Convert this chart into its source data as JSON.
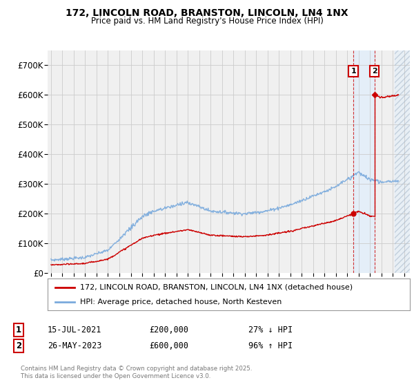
{
  "title1": "172, LINCOLN ROAD, BRANSTON, LINCOLN, LN4 1NX",
  "title2": "Price paid vs. HM Land Registry's House Price Index (HPI)",
  "yticks": [
    0,
    100000,
    200000,
    300000,
    400000,
    500000,
    600000,
    700000
  ],
  "ytick_labels": [
    "£0",
    "£100K",
    "£200K",
    "£300K",
    "£400K",
    "£500K",
    "£600K",
    "£700K"
  ],
  "xlim_start": 1994.7,
  "xlim_end": 2026.5,
  "ylim": [
    0,
    750000
  ],
  "background_color": "#ffffff",
  "plot_bg_color": "#f0f0f0",
  "grid_color": "#cccccc",
  "hpi_line_color": "#7aaadd",
  "price_line_color": "#cc0000",
  "sale1_year": 2021.54,
  "sale1_price": 200000,
  "sale2_year": 2023.4,
  "sale2_price": 600000,
  "legend_entry1": "172, LINCOLN ROAD, BRANSTON, LINCOLN, LN4 1NX (detached house)",
  "legend_entry2": "HPI: Average price, detached house, North Kesteven",
  "annotation1_date": "15-JUL-2021",
  "annotation1_price": "£200,000",
  "annotation1_hpi": "27% ↓ HPI",
  "annotation2_date": "26-MAY-2023",
  "annotation2_price": "£600,000",
  "annotation2_hpi": "96% ↑ HPI",
  "footer": "Contains HM Land Registry data © Crown copyright and database right 2025.\nThis data is licensed under the Open Government Licence v3.0.",
  "shaded_color": "#ddeeff",
  "shaded_alpha": 0.6,
  "future_start": 2025.17
}
